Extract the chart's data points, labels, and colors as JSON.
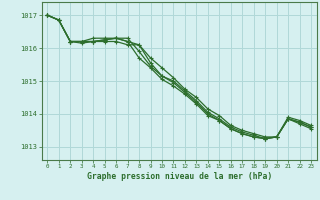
{
  "background_color": "#d6f0f0",
  "grid_color": "#b0d8d8",
  "line_color": "#2d6e2d",
  "marker_color": "#2d6e2d",
  "xlabel": "Graphe pression niveau de la mer (hPa)",
  "xlim": [
    -0.5,
    23.5
  ],
  "ylim": [
    1012.6,
    1017.4
  ],
  "yticks": [
    1013,
    1014,
    1015,
    1016,
    1017
  ],
  "xticks": [
    0,
    1,
    2,
    3,
    4,
    5,
    6,
    7,
    8,
    9,
    10,
    11,
    12,
    13,
    14,
    15,
    16,
    17,
    18,
    19,
    20,
    21,
    22,
    23
  ],
  "series": [
    [
      1017.0,
      1016.85,
      1016.2,
      1016.2,
      1016.2,
      1016.25,
      1016.3,
      1016.2,
      1016.1,
      1015.55,
      1015.15,
      1015.0,
      1014.7,
      1014.4,
      1014.05,
      1013.85,
      1013.6,
      1013.45,
      1013.35,
      1013.25,
      1013.3,
      1013.85,
      1013.75,
      1013.6
    ],
    [
      1017.0,
      1016.85,
      1016.2,
      1016.2,
      1016.2,
      1016.25,
      1016.3,
      1016.2,
      1015.7,
      1015.4,
      1015.05,
      1014.85,
      1014.6,
      1014.3,
      1013.95,
      1013.8,
      1013.55,
      1013.4,
      1013.3,
      1013.25,
      1013.3,
      1013.85,
      1013.7,
      1013.55
    ],
    [
      1017.0,
      1016.85,
      1016.2,
      1016.2,
      1016.3,
      1016.3,
      1016.3,
      1016.3,
      1015.9,
      1015.45,
      1015.15,
      1014.95,
      1014.65,
      1014.35,
      1014.0,
      1013.8,
      1013.55,
      1013.4,
      1013.3,
      1013.25,
      1013.3,
      1013.85,
      1013.75,
      1013.6
    ],
    [
      1017.0,
      1016.85,
      1016.2,
      1016.15,
      1016.2,
      1016.2,
      1016.2,
      1016.1,
      1016.1,
      1015.7,
      1015.4,
      1015.1,
      1014.75,
      1014.5,
      1014.15,
      1013.95,
      1013.65,
      1013.5,
      1013.4,
      1013.3,
      1013.3,
      1013.9,
      1013.8,
      1013.65
    ]
  ]
}
